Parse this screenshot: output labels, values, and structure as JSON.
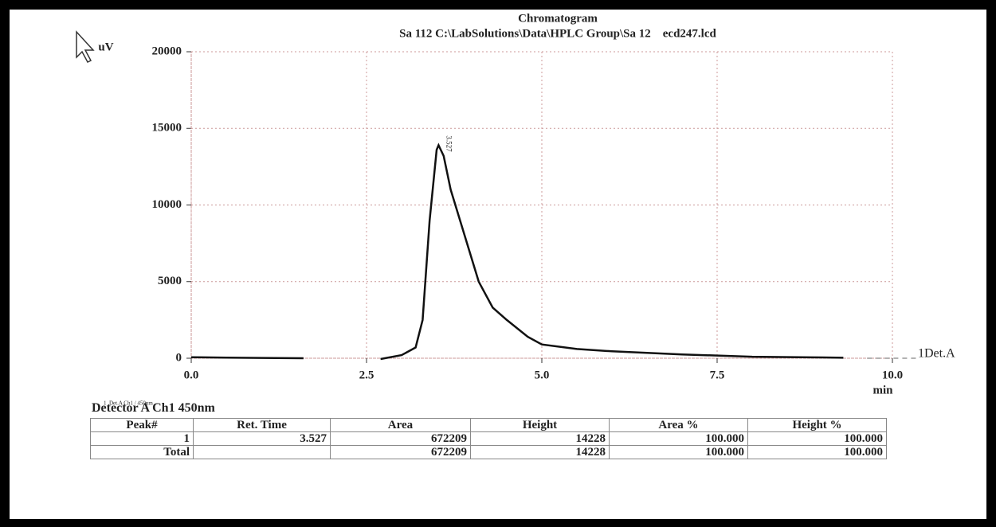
{
  "chart_data": {
    "type": "line",
    "title": "Chromatogram",
    "subtitle": "Sa 112 C:\\LabSolutions\\Data\\HPLC Group\\Sa 12    ecd247.lcd",
    "y_label": "uV",
    "x_label": "min",
    "annotation": "3.527",
    "footnote": "1  Det.A Ch1 / 450nm",
    "xlim": [
      0,
      10
    ],
    "ylim": [
      0,
      20000
    ],
    "xticks": [
      {
        "value": 0,
        "label": "0.0"
      },
      {
        "value": 2.5,
        "label": "2.5"
      },
      {
        "value": 5,
        "label": "5.0"
      },
      {
        "value": 7.5,
        "label": "7.5"
      },
      {
        "value": 10,
        "label": "10.0"
      }
    ],
    "yticks": [
      0,
      5000,
      10000,
      15000,
      20000
    ],
    "grid": true,
    "series": [
      {
        "name": "1Det.A",
        "color": "#111111",
        "x": [
          0,
          0.5,
          1.0,
          1.6,
          2.0,
          2.7,
          3.0,
          3.2,
          3.3,
          3.4,
          3.5,
          3.527,
          3.6,
          3.7,
          3.9,
          4.1,
          4.3,
          4.5,
          4.8,
          5.0,
          5.5,
          6.0,
          7.0,
          8.0,
          9.0,
          9.3
        ],
        "values": [
          60,
          40,
          20,
          0,
          null,
          -50,
          200,
          700,
          2500,
          9000,
          13600,
          13900,
          13200,
          11000,
          8000,
          5000,
          3300,
          2500,
          1400,
          900,
          600,
          450,
          250,
          100,
          50,
          30
        ]
      }
    ]
  },
  "table": {
    "title": "Detector A Ch1 450nm",
    "header": [
      "Peak#",
      "Ret. Time",
      "Area",
      "Height",
      "Area %",
      "Height %"
    ],
    "rows": [
      [
        "1",
        "3.527",
        "672209",
        "14228",
        "100.000",
        "100.000"
      ],
      [
        "Total",
        null,
        "672209",
        "14228",
        "100.000",
        "100.000"
      ]
    ]
  }
}
